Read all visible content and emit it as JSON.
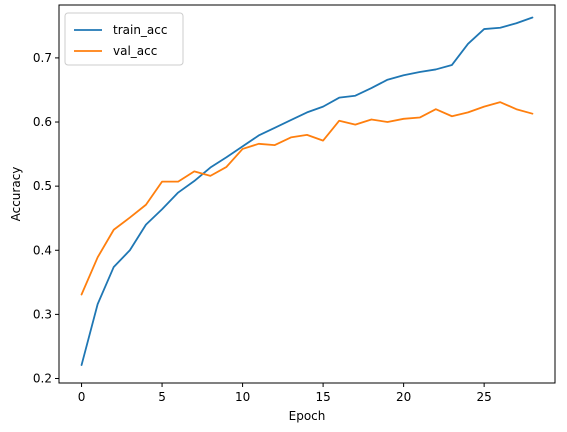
{
  "chart_data": {
    "type": "line",
    "title": "",
    "xlabel": "Epoch",
    "ylabel": "Accuracy",
    "xlim": [
      -1.4,
      29.4
    ],
    "ylim": [
      0.193,
      0.7825
    ],
    "xticks": [
      0,
      5,
      10,
      15,
      20,
      25
    ],
    "xtick_labels": [
      "0",
      "5",
      "10",
      "15",
      "20",
      "25"
    ],
    "yticks": [
      0.2,
      0.3,
      0.4,
      0.5,
      0.6,
      0.7
    ],
    "ytick_labels": [
      "0.2",
      "0.3",
      "0.4",
      "0.5",
      "0.6",
      "0.7"
    ],
    "grid": false,
    "legend_position": "top-left",
    "x": [
      0,
      1,
      2,
      3,
      4,
      5,
      6,
      7,
      8,
      9,
      10,
      11,
      12,
      13,
      14,
      15,
      16,
      17,
      18,
      19,
      20,
      21,
      22,
      23,
      24,
      25,
      26,
      27,
      28
    ],
    "series": [
      {
        "name": "train_acc",
        "color": "#1f77b4",
        "values": [
          0.221,
          0.316,
          0.374,
          0.4,
          0.44,
          0.464,
          0.49,
          0.508,
          0.529,
          0.545,
          0.562,
          0.579,
          0.591,
          0.603,
          0.615,
          0.624,
          0.638,
          0.641,
          0.653,
          0.666,
          0.673,
          0.678,
          0.682,
          0.689,
          0.722,
          0.745,
          0.747,
          0.754,
          0.763
        ]
      },
      {
        "name": "val_acc",
        "color": "#ff7f0e",
        "values": [
          0.331,
          0.389,
          0.432,
          0.451,
          0.471,
          0.507,
          0.507,
          0.523,
          0.516,
          0.53,
          0.558,
          0.566,
          0.564,
          0.576,
          0.58,
          0.571,
          0.602,
          0.596,
          0.604,
          0.6,
          0.605,
          0.607,
          0.62,
          0.609,
          0.615,
          0.624,
          0.631,
          0.62,
          0.613
        ]
      }
    ]
  }
}
